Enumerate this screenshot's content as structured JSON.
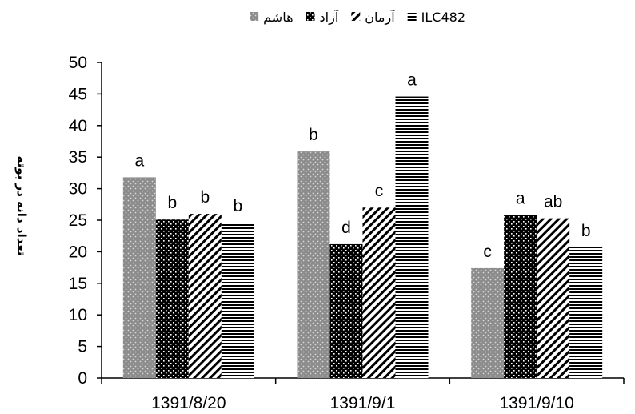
{
  "chart_data": {
    "type": "bar",
    "title": "",
    "xlabel": "",
    "ylabel": "تعداد دانه در بوته",
    "ylim": [
      0,
      50
    ],
    "yticks": [
      0,
      5,
      10,
      15,
      20,
      25,
      30,
      35,
      40,
      45,
      50
    ],
    "grid": false,
    "legend_position": "top",
    "categories": [
      "1391/8/20",
      "1391/9/1",
      "1391/9/10"
    ],
    "series": [
      {
        "name": "هاشم",
        "pattern": "dots",
        "color": "#8c8c8c",
        "values": [
          31.8,
          35.9,
          17.4
        ],
        "labels": [
          "a",
          "b",
          "c"
        ]
      },
      {
        "name": "آزاد",
        "pattern": "checker",
        "color": "#000000",
        "values": [
          25.1,
          21.2,
          25.8
        ],
        "labels": [
          "b",
          "d",
          "a"
        ]
      },
      {
        "name": "آرمان",
        "pattern": "diagonal",
        "color": "#000000",
        "values": [
          26.0,
          27.0,
          25.3
        ],
        "labels": [
          "b",
          "c",
          "ab"
        ]
      },
      {
        "name": "ILC482",
        "pattern": "horizontal",
        "color": "#000000",
        "values": [
          24.6,
          44.6,
          20.7
        ],
        "labels": [
          "b",
          "a",
          "b"
        ]
      }
    ]
  }
}
